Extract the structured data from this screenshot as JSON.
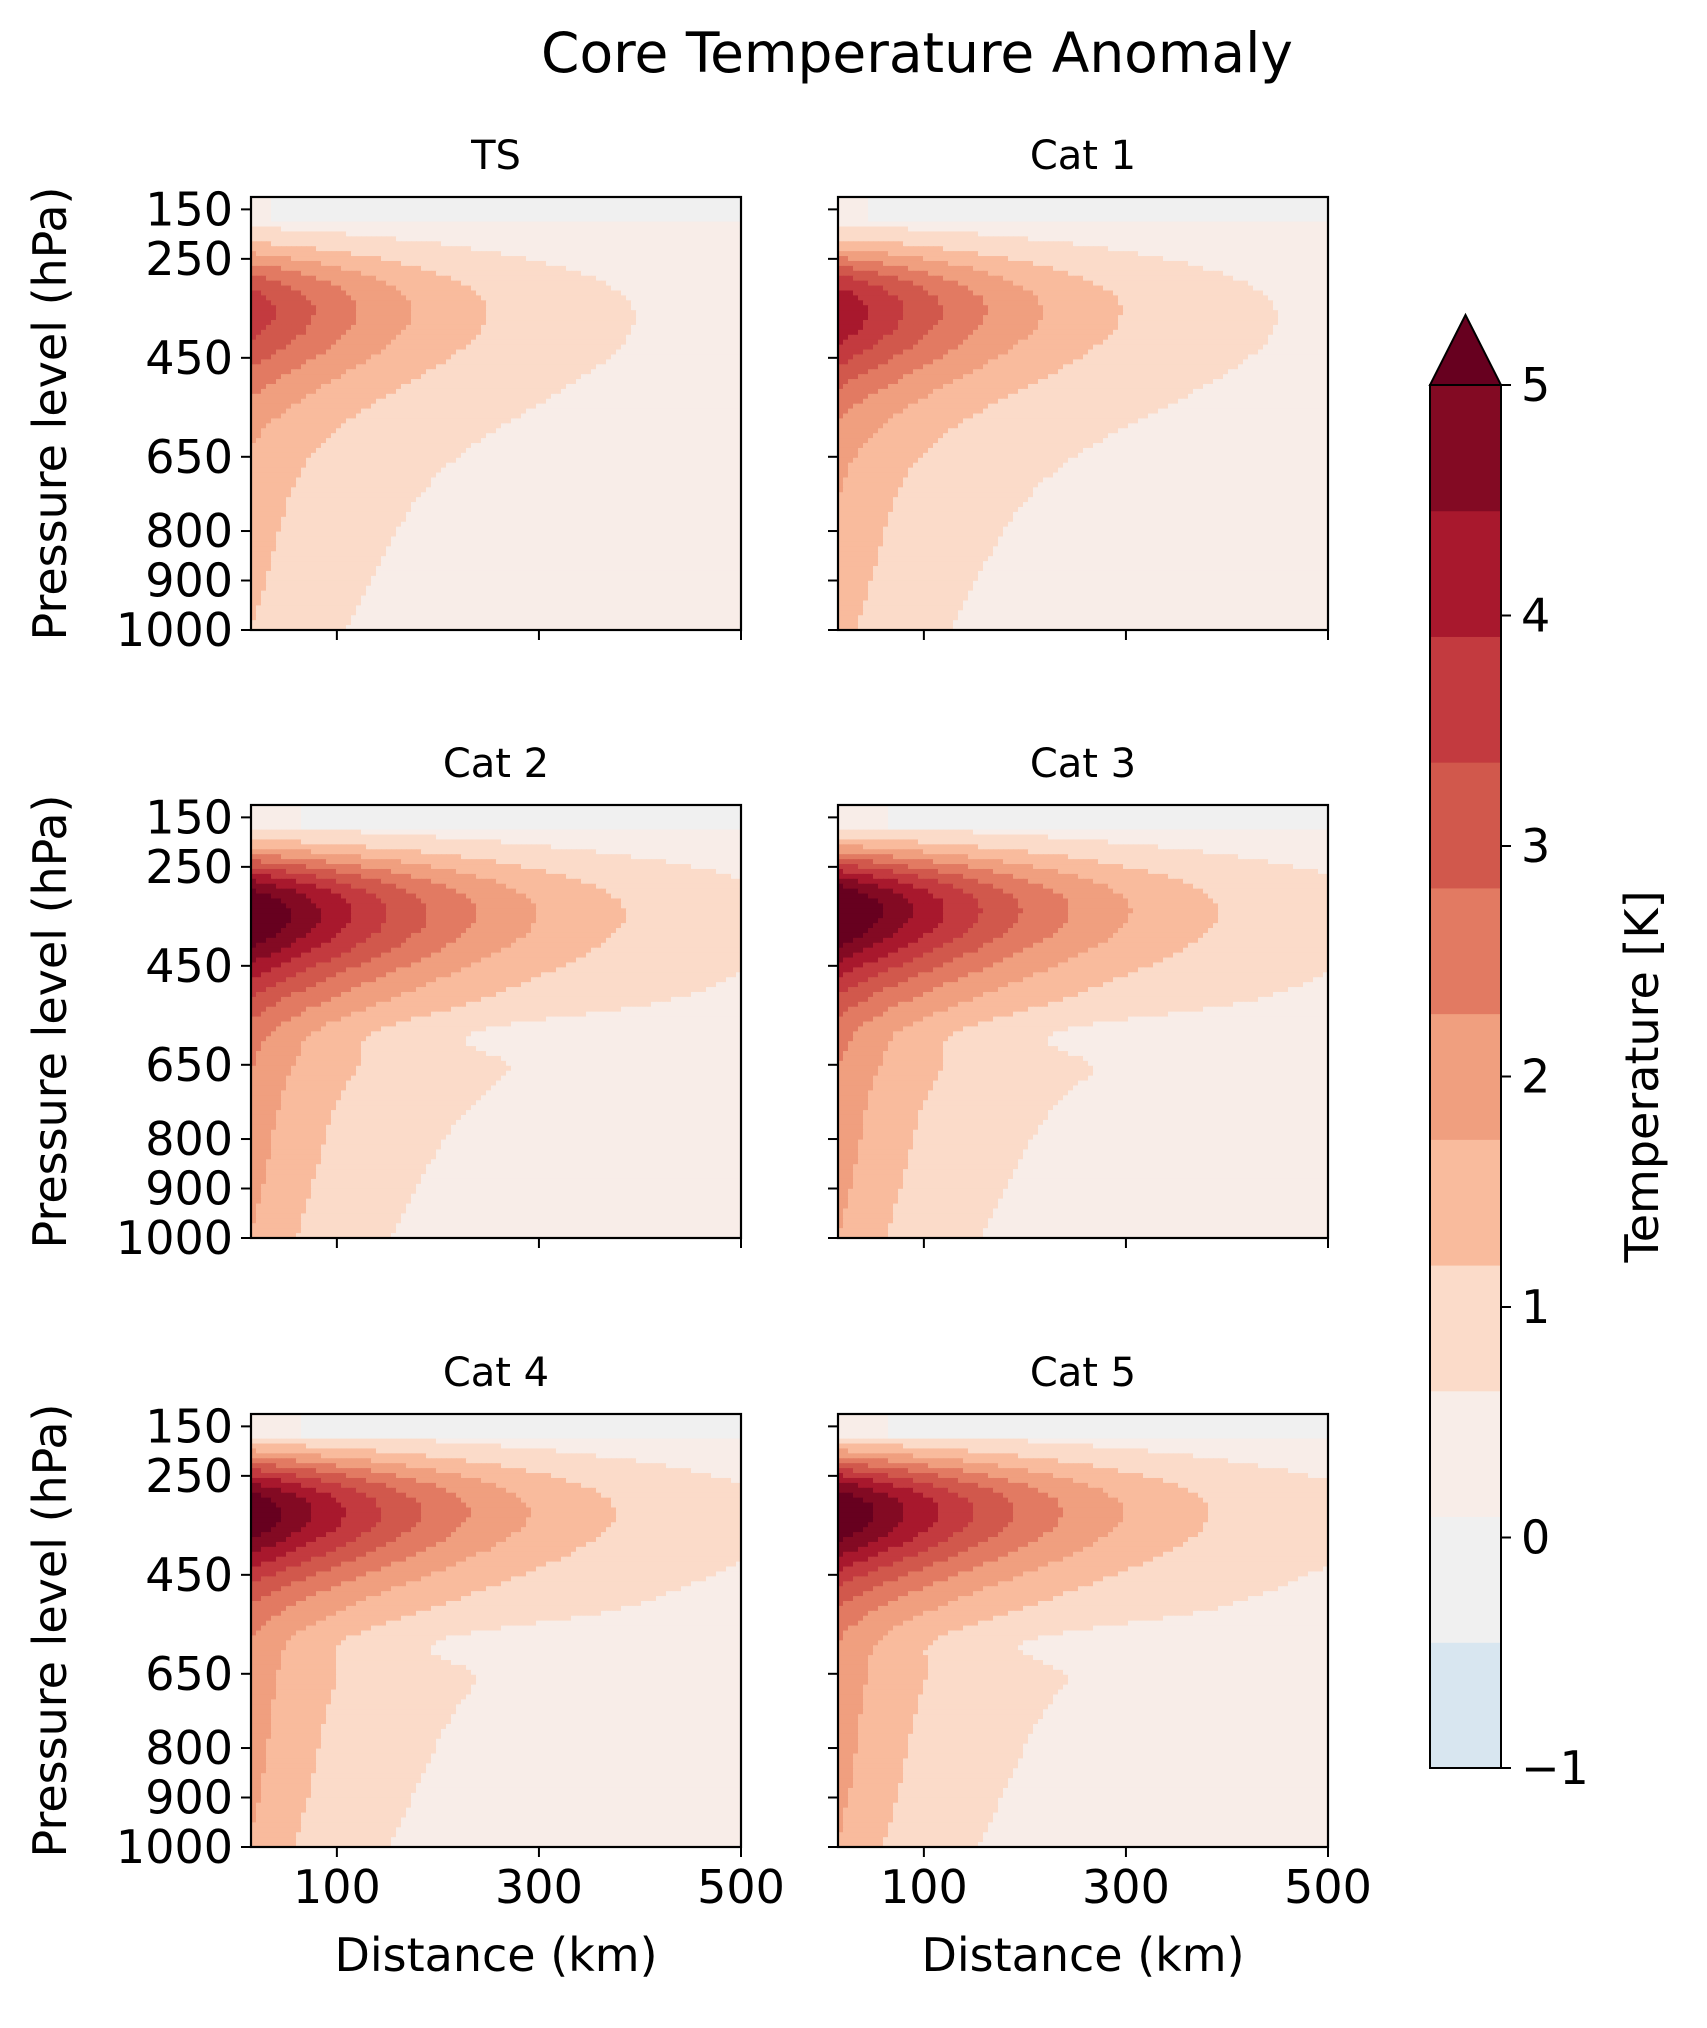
{
  "chart_data": {
    "type": "heatmap",
    "title": "Core Temperature Anomaly",
    "xlabel": "Distance (km)",
    "ylabel": "Pressure level (hPa)",
    "xlim": [
      15,
      500
    ],
    "ylim": [
      1000,
      125
    ],
    "x_ticks": [
      100,
      300,
      500
    ],
    "x_tick_labels": [
      "100",
      "300",
      "500"
    ],
    "y_ticks": [
      150,
      250,
      450,
      650,
      800,
      900,
      1000
    ],
    "y_tick_labels": [
      "150",
      "250",
      "450",
      "650",
      "800",
      "900",
      "1000"
    ],
    "colorbar": {
      "label": "Temperature [K]",
      "min": -1,
      "max": 5,
      "levels": [
        -1,
        -0.5,
        0,
        0.5,
        1,
        1.5,
        2,
        2.5,
        3,
        3.5,
        4,
        4.5,
        5
      ],
      "ticks": [
        -1,
        0,
        1,
        2,
        3,
        4,
        5
      ],
      "tick_labels": [
        "−1",
        "0",
        "1",
        "2",
        "3",
        "4",
        "5"
      ],
      "extend": "max",
      "colors": [
        "#d8e6f0",
        "#f0f0f0",
        "#f8ede8",
        "#fbdbc9",
        "#f9bb9d",
        "#f09f7f",
        "#e27a62",
        "#d1584c",
        "#c33a3f",
        "#a8182d",
        "#830a23",
        "#67001f"
      ]
    },
    "panels": [
      {
        "title": "TS",
        "core_max": 3.0,
        "core_pressure": 350
      },
      {
        "title": "Cat 1",
        "core_max": 3.6,
        "core_pressure": 350
      },
      {
        "title": "Cat 2",
        "core_max": 4.8,
        "core_pressure": 340
      },
      {
        "title": "Cat 3",
        "core_max": 4.9,
        "core_pressure": 335
      },
      {
        "title": "Cat 4",
        "core_max": 4.7,
        "core_pressure": 320
      },
      {
        "title": "Cat 5",
        "core_max": 4.8,
        "core_pressure": 320
      }
    ]
  }
}
